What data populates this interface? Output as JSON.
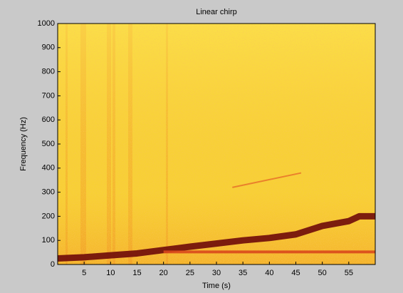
{
  "chart_data": {
    "type": "spectrogram",
    "title": "Linear chirp",
    "x_label": "Time (s)",
    "y_label": "Frequency (Hz)",
    "xlim": [
      0,
      60
    ],
    "ylim": [
      0,
      1000
    ],
    "xticks": [
      5,
      10,
      15,
      20,
      25,
      30,
      35,
      40,
      45,
      50,
      55
    ],
    "yticks": [
      0,
      100,
      200,
      300,
      400,
      500,
      600,
      700,
      800,
      900,
      1000
    ],
    "background_color": "#f8d536",
    "lines": [
      {
        "color": "#6e0a0a",
        "width": 9,
        "x": [
          0,
          5,
          10,
          15,
          20,
          25,
          30,
          35,
          40,
          45,
          50,
          55,
          57,
          60
        ],
        "values": [
          25,
          30,
          38,
          46,
          60,
          74,
          87,
          100,
          110,
          125,
          160,
          180,
          200,
          200
        ]
      },
      {
        "color": "#d9481c",
        "width": 4,
        "x": [
          20,
          60
        ],
        "values": [
          52,
          52
        ]
      },
      {
        "color": "#e8782a",
        "width": 2,
        "x": [
          33,
          46
        ],
        "values": [
          320,
          380
        ]
      }
    ]
  }
}
